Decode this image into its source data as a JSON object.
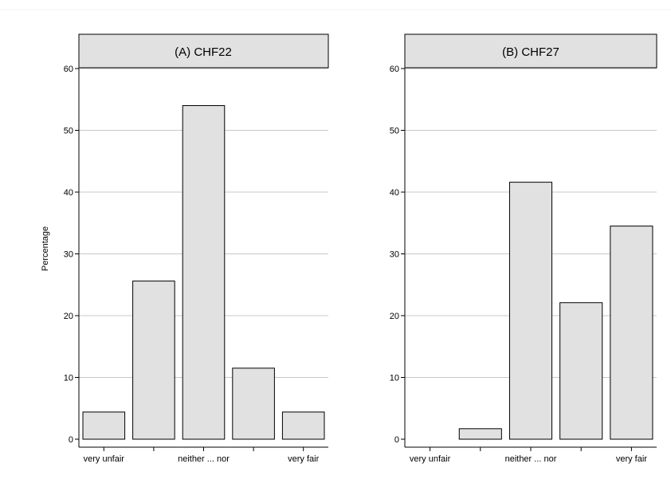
{
  "chart_data": [
    {
      "type": "bar",
      "title": "(A) CHF22",
      "ylabel": "Percentage",
      "ylim": [
        0,
        60
      ],
      "yticks": [
        0,
        10,
        20,
        30,
        40,
        50,
        60
      ],
      "grid": true,
      "categories": [
        "very unfair",
        "",
        "neither ... nor",
        "",
        "very fair"
      ],
      "values": [
        4.4,
        25.6,
        54.0,
        11.5,
        4.4
      ],
      "bar_color": "#e1e1e1",
      "header_color": "#e1e1e1"
    },
    {
      "type": "bar",
      "title": "(B) CHF27",
      "ylabel": "",
      "ylim": [
        0,
        60
      ],
      "yticks": [
        0,
        10,
        20,
        30,
        40,
        50,
        60
      ],
      "grid": true,
      "categories": [
        "very unfair",
        "",
        "neither ... nor",
        "",
        "very fair"
      ],
      "values": [
        0,
        1.7,
        41.6,
        22.1,
        34.5
      ],
      "bar_color": "#e1e1e1",
      "header_color": "#e1e1e1"
    }
  ]
}
